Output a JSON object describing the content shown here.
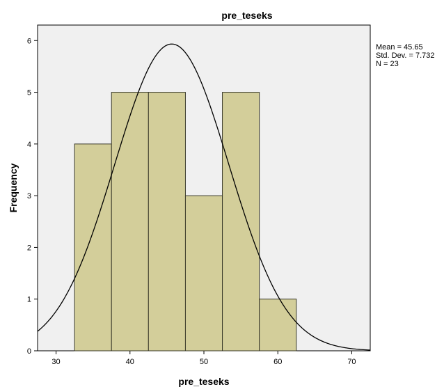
{
  "chart_data": {
    "type": "bar",
    "title": "pre_teseks",
    "xlabel": "pre_teseks",
    "ylabel": "Frequency",
    "bins": [
      {
        "from": 32.5,
        "to": 37.5,
        "count": 4
      },
      {
        "from": 37.5,
        "to": 42.5,
        "count": 5
      },
      {
        "from": 42.5,
        "to": 47.5,
        "count": 5
      },
      {
        "from": 47.5,
        "to": 52.5,
        "count": 3
      },
      {
        "from": 52.5,
        "to": 57.5,
        "count": 5
      },
      {
        "from": 57.5,
        "to": 62.5,
        "count": 1
      }
    ],
    "xlim": [
      27.5,
      72.5
    ],
    "ylim": [
      0,
      6.3
    ],
    "xticks": [
      30,
      40,
      50,
      60,
      70
    ],
    "yticks": [
      0,
      1,
      2,
      3,
      4,
      5,
      6
    ],
    "normal_curve": {
      "mean": 45.65,
      "sd": 7.732,
      "n": 23,
      "bin_width": 5
    },
    "stats": [
      "Mean = 45.65",
      "Std. Dev. = 7.732",
      "N = 23"
    ],
    "grid": false,
    "colors": {
      "bar_fill": "#d3ce9a",
      "bar_edge": "#3a3a2a",
      "plot_bg": "#f0f0f0",
      "curve": "#000000"
    }
  }
}
